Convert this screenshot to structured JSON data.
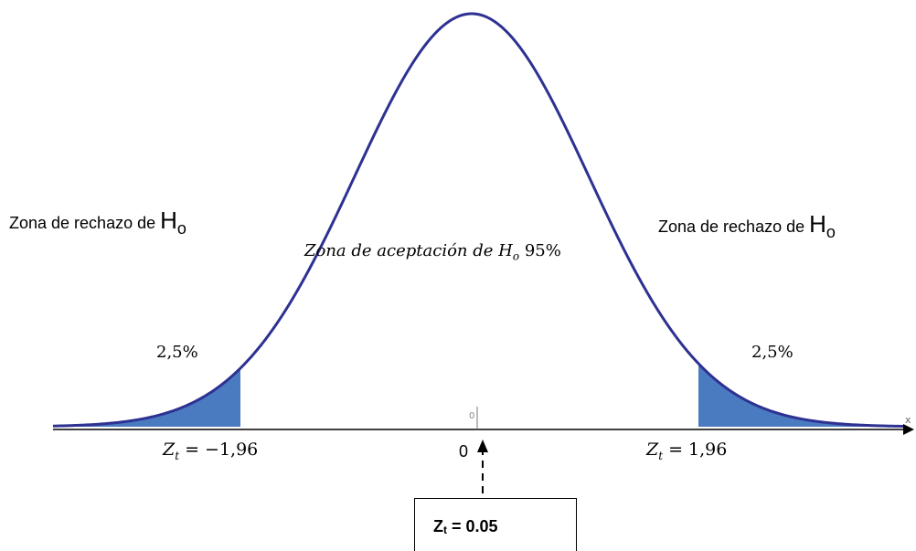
{
  "diagram": {
    "left_zone_label": "Zona de rechazo de",
    "right_zone_label": "Zona de rechazo de",
    "h_symbol": "H",
    "h_subscript": "o",
    "acceptance_label": "Zona de aceptación de",
    "acceptance_h": "H",
    "acceptance_h_sub": "o",
    "acceptance_pct": "95%",
    "left_tail_pct": "2,5%",
    "right_tail_pct": "2,5%",
    "left_critical_sym": "Z",
    "left_critical_sub": "t",
    "left_critical_value": " = −1,96",
    "right_critical_sym": "Z",
    "right_critical_sub": "t",
    "right_critical_value": " = 1,96",
    "center_tick_label": "0",
    "center_axis_label": "0",
    "axis_end_label": "x",
    "result_symbol": "Z",
    "result_subscript": "t",
    "result_value": " = 0.05",
    "colors": {
      "curve": "#2e3192",
      "tail_fill": "#4a7abf",
      "axis": "#000000"
    }
  }
}
